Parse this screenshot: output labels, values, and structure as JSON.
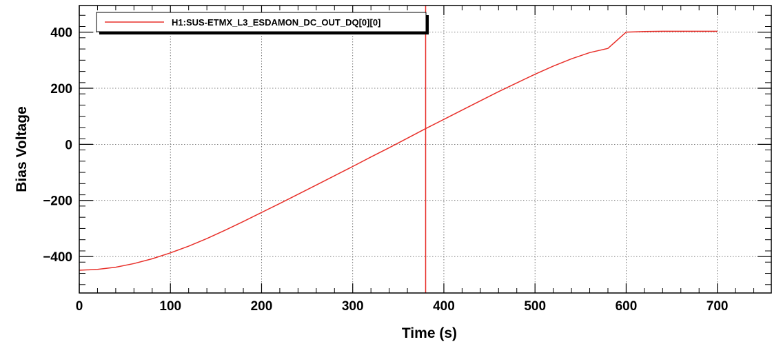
{
  "chart_data": {
    "type": "line",
    "title": "",
    "xlabel": "Time (s)",
    "ylabel": "Bias Voltage",
    "xlim": [
      0,
      760
    ],
    "ylim": [
      -530,
      495
    ],
    "grid": true,
    "legend_position": "top-left",
    "x_ticks": [
      0,
      100,
      200,
      300,
      400,
      500,
      600,
      700
    ],
    "y_ticks": [
      -400,
      -200,
      0,
      200,
      400
    ],
    "x_tick_labels": [
      "0",
      "100",
      "200",
      "300",
      "400",
      "500",
      "600",
      "700"
    ],
    "y_tick_labels": [
      "−400",
      "−200",
      "0",
      "200",
      "400"
    ],
    "series": [
      {
        "name": "H1:SUS-ETMX_L3_ESDAMON_DC_OUT_DQ[0][0]",
        "color": "#e8302a",
        "x": [
          0,
          20,
          40,
          60,
          80,
          100,
          120,
          140,
          160,
          180,
          200,
          220,
          240,
          260,
          280,
          300,
          320,
          340,
          360,
          380,
          400,
          420,
          440,
          460,
          480,
          500,
          520,
          540,
          560,
          580,
          600,
          620,
          640,
          660,
          680,
          700
        ],
        "y": [
          -449,
          -446,
          -438,
          -425,
          -408,
          -387,
          -363,
          -336,
          -306,
          -275,
          -243,
          -211,
          -178,
          -145,
          -112,
          -79,
          -45,
          -12,
          22,
          56,
          89,
          122,
          155,
          188,
          219,
          250,
          279,
          305,
          327,
          342,
          400,
          402,
          403,
          403,
          403,
          403
        ]
      }
    ],
    "annotations": [
      {
        "type": "vline",
        "x": 380,
        "color": "#e8302a"
      }
    ]
  }
}
